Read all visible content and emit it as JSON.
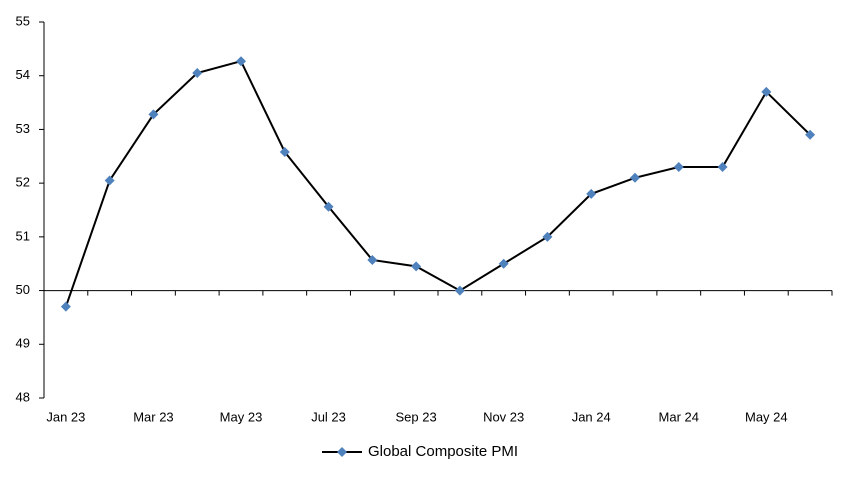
{
  "chart_data": {
    "type": "line",
    "categories": [
      "Jan 23",
      null,
      "Mar 23",
      null,
      "May 23",
      null,
      "Jul 23",
      null,
      "Sep 23",
      null,
      "Nov 23",
      null,
      "Jan 24",
      null,
      "Mar 24",
      null,
      "May 24",
      null
    ],
    "series": [
      {
        "name": "Global Composite PMI",
        "color": "#4f81bd",
        "line_color": "#000000",
        "values": [
          49.7,
          52.05,
          53.28,
          54.05,
          54.27,
          52.58,
          51.56,
          50.57,
          50.45,
          50.0,
          50.5,
          51.0,
          51.8,
          52.1,
          52.3,
          52.3,
          53.7,
          52.9
        ]
      }
    ],
    "ylim": [
      48,
      55
    ],
    "yticks": [
      48,
      49,
      50,
      51,
      52,
      53,
      54,
      55
    ],
    "x_axis_crosses": 50,
    "grid": false,
    "legend": "bottom"
  }
}
